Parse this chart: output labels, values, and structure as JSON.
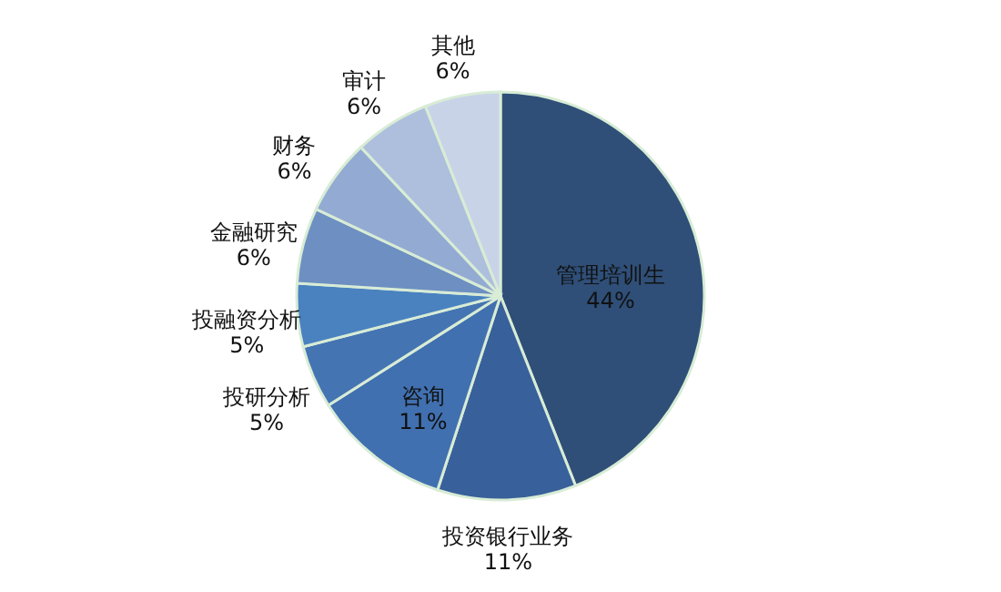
{
  "chart_data": {
    "type": "pie",
    "categories": [
      "管理培训生",
      "投资银行业务",
      "咨询",
      "投研分析",
      "投融资分析",
      "金融研究",
      "财务",
      "审计",
      "其他"
    ],
    "values": [
      44,
      11,
      11,
      5,
      5,
      6,
      6,
      6,
      6
    ],
    "value_labels": [
      "44%",
      "11%",
      "11%",
      "5%",
      "5%",
      "6%",
      "6%",
      "6%",
      "6%"
    ],
    "colors": [
      "#2f4f78",
      "#38609a",
      "#4170b0",
      "#4474b2",
      "#4a82c0",
      "#6d8fc1",
      "#93abd2",
      "#adbfdd",
      "#c9d3e8"
    ],
    "legend": false
  }
}
